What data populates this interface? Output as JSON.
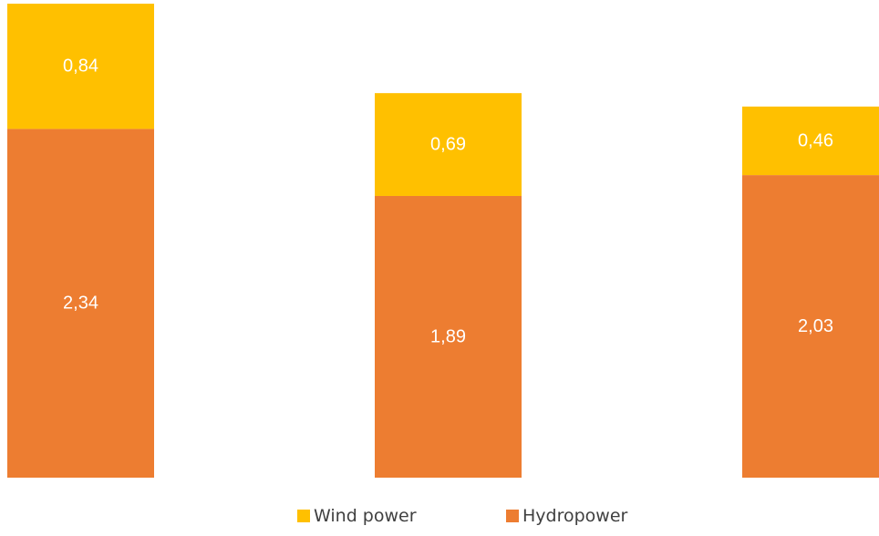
{
  "chart_data": {
    "type": "bar",
    "stacked": true,
    "categories": [
      "",
      "",
      ""
    ],
    "series": [
      {
        "name": "Hydropower",
        "color": "#ED7D31",
        "values": [
          2.34,
          1.89,
          2.03
        ],
        "labels": [
          "2,34",
          "1,89",
          "2,03"
        ]
      },
      {
        "name": "Wind power",
        "color": "#FFC000",
        "values": [
          0.84,
          0.69,
          0.46
        ],
        "labels": [
          "0,84",
          "0,69",
          "0,46"
        ]
      }
    ],
    "legend": {
      "position": "bottom",
      "order": [
        "Wind power",
        "Hydropower"
      ]
    },
    "grid": false,
    "axes_visible": false
  }
}
